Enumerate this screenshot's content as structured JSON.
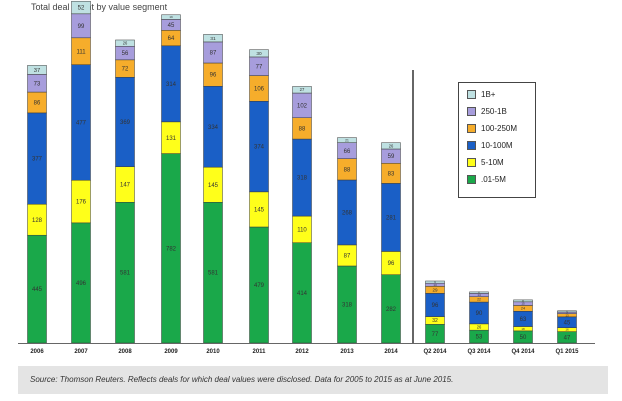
{
  "chart_data": {
    "type": "bar",
    "stacked": true,
    "title": "Total deal count by value segment",
    "categories": [
      "2006",
      "2007",
      "2008",
      "2009",
      "2010",
      "2011",
      "2012",
      "2013",
      "2014",
      "Q2 2014",
      "Q3 2014",
      "Q4 2014",
      "Q1 2015"
    ],
    "series": [
      {
        "name": ".01-5M",
        "color": "#1aa84a",
        "values": [
          445,
          496,
          581,
          782,
          581,
          479,
          414,
          318,
          282,
          77,
          53,
          50,
          47
        ]
      },
      {
        "name": "5-10M",
        "color": "#ffff1a",
        "values": [
          128,
          176,
          147,
          131,
          145,
          145,
          110,
          87,
          96,
          32,
          26,
          18,
          16
        ]
      },
      {
        "name": "10-100M",
        "color": "#1a5fc6",
        "values": [
          377,
          477,
          369,
          314,
          334,
          374,
          318,
          268,
          281,
          96,
          90,
          63,
          45
        ]
      },
      {
        "name": "100-250M",
        "color": "#f6ad2b",
        "values": [
          86,
          111,
          72,
          64,
          96,
          106,
          88,
          88,
          83,
          29,
          22,
          24,
          13
        ]
      },
      {
        "name": "250-1B",
        "color": "#a79ddc",
        "values": [
          73,
          99,
          56,
          45,
          87,
          77,
          102,
          66,
          59,
          13,
          14,
          15,
          7
        ]
      },
      {
        "name": "1B+",
        "color": "#bfe1e2",
        "values": [
          37,
          52,
          26,
          19,
          31,
          30,
          27,
          21,
          26,
          9,
          6,
          8,
          5
        ]
      }
    ],
    "legend": {
      "placement": "right",
      "order": [
        "1B+",
        "250-1B",
        "100-250M",
        "10-100M",
        "5-10M",
        ".01-5M"
      ]
    },
    "annual_quarterly_divider": "between 2014 and Q2 2014",
    "grid": false,
    "ylim": [
      0,
      1350
    ]
  },
  "source_note": "Source: Thomson Reuters.  Reflects deals for which deal values were disclosed.  Data for 2005 to 2015 as at June 2015."
}
